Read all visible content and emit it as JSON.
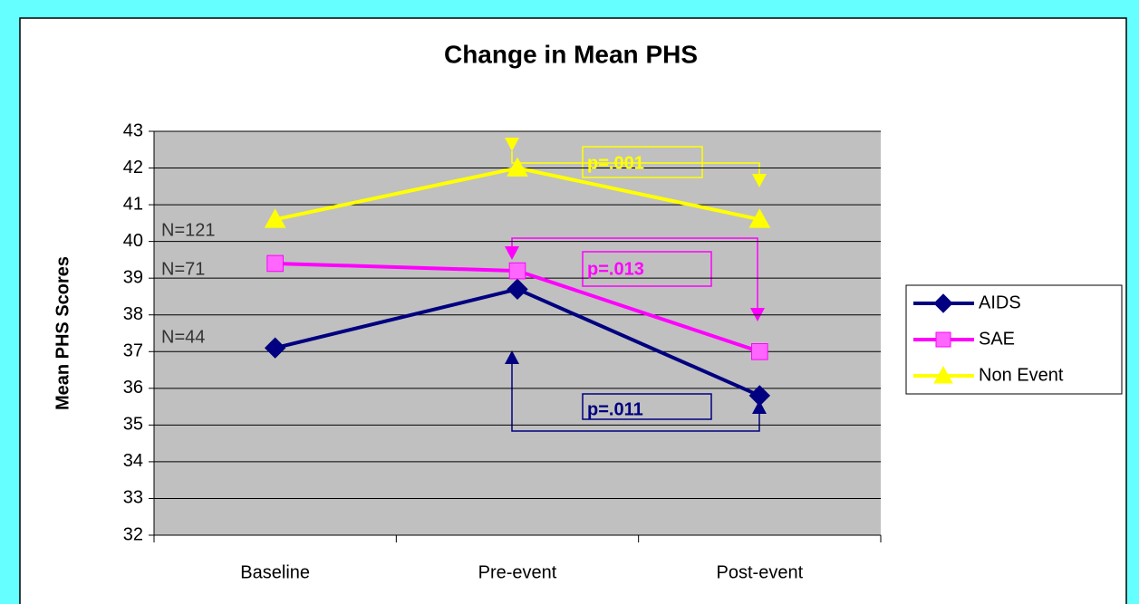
{
  "chart_data": {
    "type": "line",
    "title": "Change in Mean PHS",
    "y_label": "Mean PHS Scores",
    "categories": [
      "Baseline",
      "Pre-event",
      "Post-event"
    ],
    "series": [
      {
        "name": "AIDS",
        "color": "#000080",
        "marker": "diamond",
        "values": [
          37.1,
          38.7,
          35.8
        ]
      },
      {
        "name": "SAE",
        "color": "#ff00ff",
        "marker": "square",
        "values": [
          39.4,
          39.2,
          37.0
        ]
      },
      {
        "name": "Non Event",
        "color": "#ffff00",
        "marker": "triangle",
        "values": [
          40.6,
          42.0,
          40.6
        ]
      }
    ],
    "ylim": [
      32,
      43
    ],
    "yticks": [
      32,
      33,
      34,
      35,
      36,
      37,
      38,
      39,
      40,
      41,
      42,
      43
    ],
    "grid": true,
    "legend": "right",
    "annotations": [
      "N=121",
      "N=71",
      "N=44",
      "p=.001",
      "p=.013",
      "p=.011"
    ]
  }
}
